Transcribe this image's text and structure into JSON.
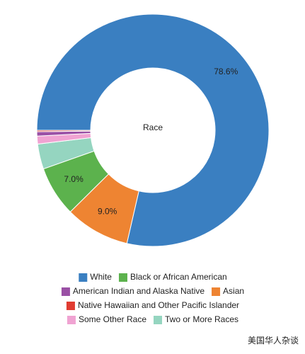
{
  "chart_data": {
    "type": "pie",
    "title": "Race",
    "categories": [
      "White",
      "Asian",
      "Black or African American",
      "Two or More Races",
      "Some Other Race",
      "American Indian and Alaska Native",
      "Native Hawaiian and Other Pacific Islander"
    ],
    "values": [
      78.6,
      9.0,
      7.0,
      3.5,
      1.1,
      0.6,
      0.2
    ],
    "value_labels": [
      "78.6%",
      "9.0%",
      "7.0%",
      null,
      null,
      null,
      null
    ],
    "colors": [
      "#3a7fc1",
      "#ee8432",
      "#5cb24d",
      "#95d5c0",
      "#f0a3d2",
      "#9a50a5",
      "#e03c31"
    ],
    "donut": true
  },
  "watermark": "美国华人杂谈"
}
